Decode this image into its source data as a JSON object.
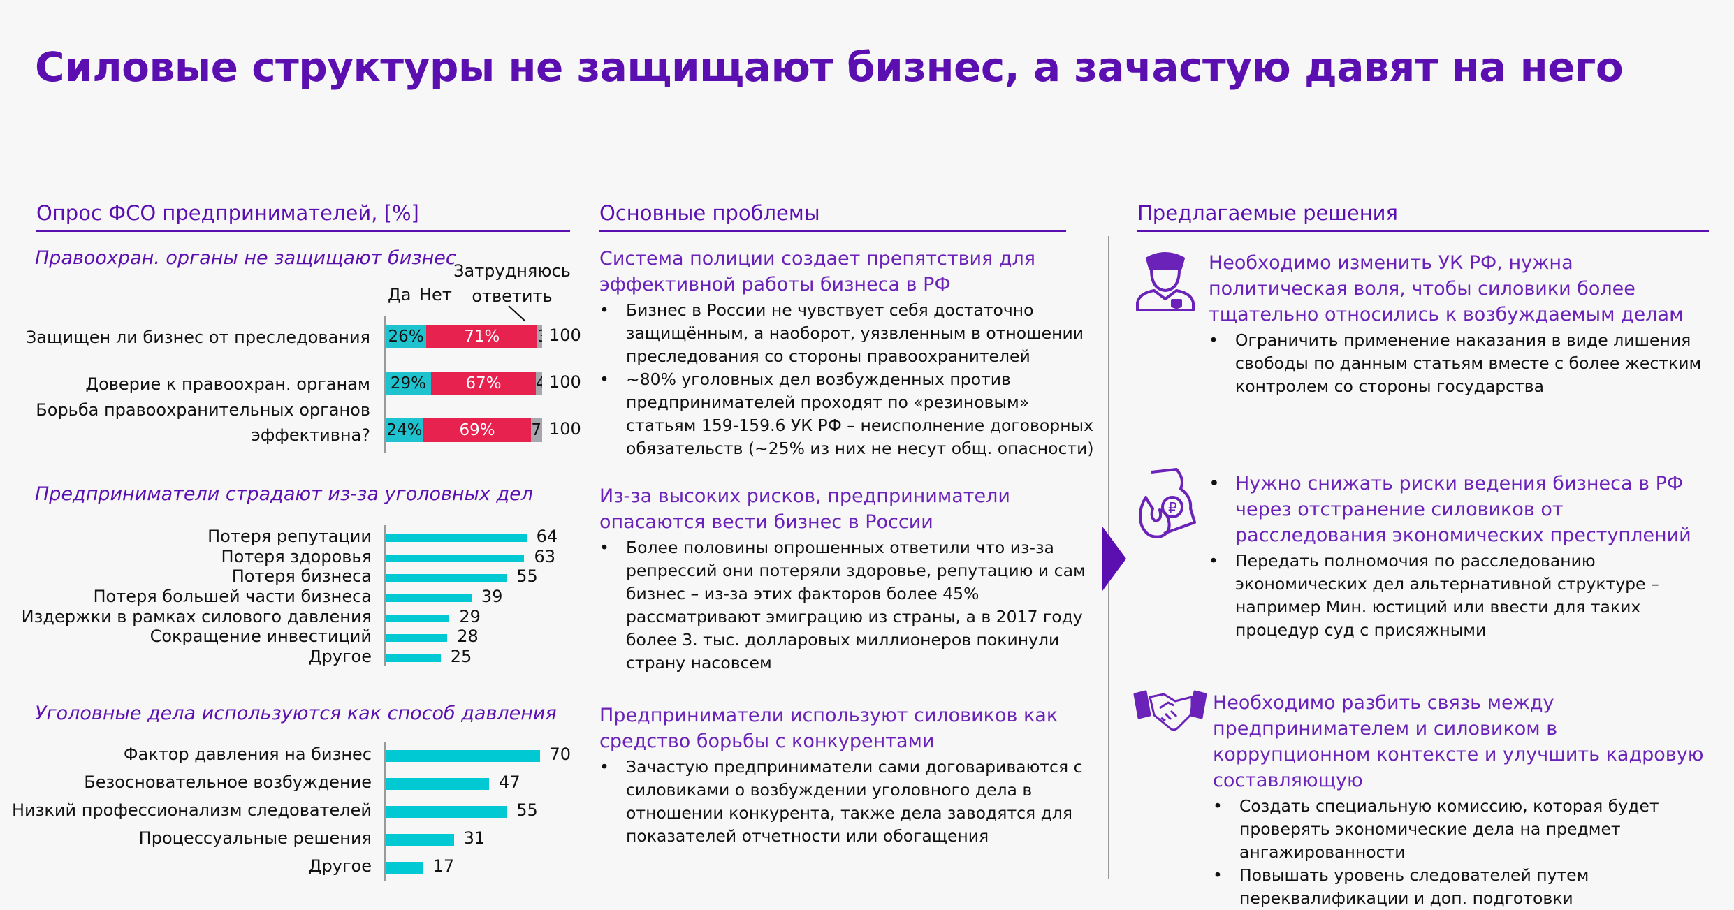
{
  "title": "Силовые структуры не защищают бизнес, а зачастую давят на него",
  "columns": {
    "survey": "Опрос ФСО предпринимателей, [%]",
    "problems": "Основные проблемы",
    "solutions": "Предлагаемые решения"
  },
  "chart_data": [
    {
      "type": "bar",
      "stacked": true,
      "subtitle": "Правоохран. органы не защищают бизнес",
      "legend": [
        "Да",
        "Нет",
        "Затрудняюсь ответить"
      ],
      "colors": [
        "#1fc3d0",
        "#e8224f",
        "#a6a6ad"
      ],
      "categories": [
        "Защищен ли бизнес от преследования",
        "Доверие к правоохран. органам",
        "Борьба правоохранительных органов эффективна?"
      ],
      "series": [
        {
          "name": "Да",
          "values": [
            26,
            29,
            24
          ]
        },
        {
          "name": "Нет",
          "values": [
            71,
            67,
            69
          ]
        },
        {
          "name": "Затрудняюсь ответить",
          "values": [
            3,
            4,
            7
          ]
        }
      ],
      "totals": [
        100,
        100,
        100
      ]
    },
    {
      "type": "bar",
      "orientation": "horizontal",
      "subtitle": "Предприниматели страдают из-за уголовных дел",
      "categories": [
        "Потеря репутации",
        "Потеря здоровья",
        "Потеря бизнеса",
        "Потеря большей части бизнеса",
        "Издержки в рамках силового давления",
        "Сокращение инвестиций",
        "Другое"
      ],
      "values": [
        64,
        63,
        55,
        39,
        29,
        28,
        25
      ],
      "color": "#00c9d4"
    },
    {
      "type": "bar",
      "orientation": "horizontal",
      "subtitle": "Уголовные дела используются как способ давления",
      "categories": [
        "Фактор давления на бизнес",
        "Безосновательное возбуждение",
        "Низкий профессионализм следователей",
        "Процессуальные решения",
        "Другое"
      ],
      "values": [
        70,
        47,
        55,
        31,
        17
      ],
      "color": "#00c9d4"
    }
  ],
  "problems": [
    {
      "heading": "Система полиции создает препятствия для эффективной работы бизнеса в РФ",
      "bullets": [
        "Бизнес в России не чувствует себя достаточно защищённым, а наоборот, уязвленным в отношении преследования со стороны правоохранителей",
        "~80% уголовных дел возбужденных против предпринимателей проходят по «резиновым» статьям 159-159.6 УК РФ – неисполнение договорных обязательств (~25% из них не несут общ. опасности)"
      ]
    },
    {
      "heading": "Из-за высоких рисков, предприниматели опасаются вести бизнес в России",
      "bullets": [
        "Более половины опрошенных ответили что из-за репрессий они потеряли здоровье, репутацию и сам бизнес – из-за этих факторов более 45% рассматривают эмиграцию из страны, а в 2017 году более 3. тыс. долларовых миллионеров покинули страну насовсем"
      ]
    },
    {
      "heading": "Предприниматели используют силовиков как средство борьбы с конкурентами",
      "bullets": [
        "Зачастую предприниматели сами договариваются с силовиками о возбуждении уголовного дела в отношении конкурента, также дела заводятся для показателей отчетности или обогащения"
      ]
    }
  ],
  "solutions": [
    {
      "icon": "police-officer-icon",
      "heading": "Необходимо изменить УК РФ, нужна политическая воля, чтобы силовики более тщательно относились к возбуждаемым делам",
      "bullets": [
        "Ограничить применение наказания в виде лишения свободы по данным статьям вместе с более жестким контролем со стороны государства"
      ]
    },
    {
      "icon": "burning-document-icon",
      "heading": "Нужно снижать риски ведения бизнеса в РФ через отстранение силовиков от расследования экономических преступлений",
      "bullets": [
        "Передать полномочия по расследованию экономических дел альтернативной структуре – например Мин. юстиций или ввести для таких процедур суд с присяжными"
      ]
    },
    {
      "icon": "handshake-money-icon",
      "heading": "Необходимо разбить связь между предпринимателем и силовиком в коррупционном контексте и улучшить кадровую составляющую",
      "bullets": [
        "Создать специальную комиссию, которая будет проверять экономические дела на предмет ангажированности",
        "Повышать уровень следователей путем переквалификации и доп. подготовки"
      ]
    }
  ]
}
